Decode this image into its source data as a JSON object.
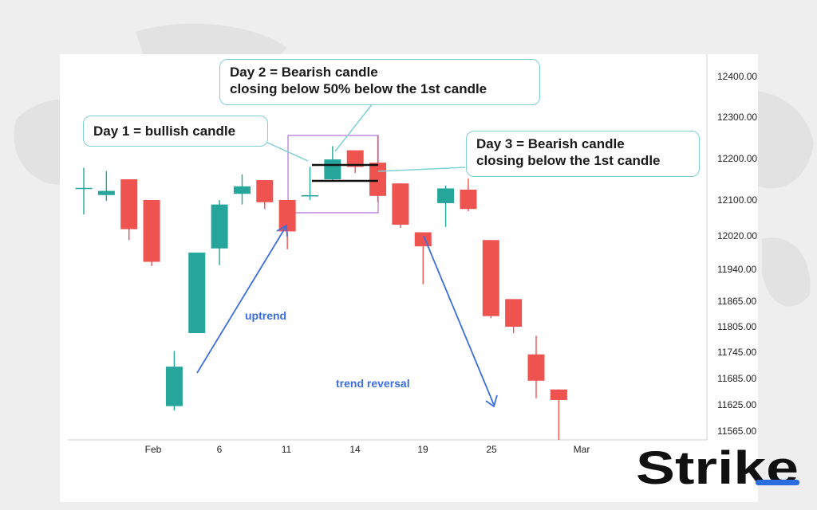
{
  "brand": {
    "logo_text": "Strike",
    "logo_color": "#111111",
    "accent_color": "#2d6cdf"
  },
  "colors": {
    "bullish": "#26a69a",
    "bearish": "#ef5350",
    "annotation_border": "#7fd0d4",
    "highlight_box": "#b56fd6",
    "trend_arrow": "#3b6fe0"
  },
  "callouts": {
    "day1": "Day 1 = bullish candle",
    "day2_line1": "Day 2 = Bearish candle",
    "day2_line2": "closing below 50% below the 1st candle",
    "day3_line1": "Day 3 = Bearish candle",
    "day3_line2": "closing below the 1st candle"
  },
  "annotations": {
    "uptrend": "uptrend",
    "reversal": "trend reversal"
  },
  "chart_data": {
    "type": "candlestick",
    "title": "",
    "xlabel": "",
    "ylabel": "",
    "grid": false,
    "y_tick_labels": [
      "12400.00",
      "12300.00",
      "12200.00",
      "12100.00",
      "12020.00",
      "11940.00",
      "11865.00",
      "11805.00",
      "11745.00",
      "11685.00",
      "11625.00",
      "11565.00"
    ],
    "x_tick_labels": [
      "Feb",
      "6",
      "11",
      "14",
      "19",
      "25",
      "Mar"
    ],
    "candles": [
      {
        "open": 12128,
        "high": 12178,
        "low": 12068,
        "close": 12128
      },
      {
        "open": 12112,
        "high": 12170,
        "low": 12098,
        "close": 12122
      },
      {
        "open": 12150,
        "high": 12150,
        "low": 12010,
        "close": 12035
      },
      {
        "open": 12100,
        "high": 12100,
        "low": 11948,
        "close": 11958
      },
      {
        "open": 11622,
        "high": 11748,
        "low": 11612,
        "close": 11712
      },
      {
        "open": 11790,
        "high": 11980,
        "low": 11790,
        "close": 11980
      },
      {
        "open": 11990,
        "high": 12100,
        "low": 11950,
        "close": 12090
      },
      {
        "open": 12115,
        "high": 12162,
        "low": 12090,
        "close": 12133
      },
      {
        "open": 12148,
        "high": 12148,
        "low": 12080,
        "close": 12095
      },
      {
        "open": 12100,
        "high": 12100,
        "low": 11988,
        "close": 12030
      },
      {
        "open": 12110,
        "high": 12180,
        "low": 12100,
        "close": 12110
      },
      {
        "open": 12150,
        "high": 12230,
        "low": 12145,
        "close": 12198
      },
      {
        "open": 12220,
        "high": 12220,
        "low": 12165,
        "close": 12180
      },
      {
        "open": 12190,
        "high": 12255,
        "low": 12095,
        "close": 12110
      },
      {
        "open": 12140,
        "high": 12140,
        "low": 12038,
        "close": 12045
      },
      {
        "open": 12028,
        "high": 12028,
        "low": 11905,
        "close": 11995
      },
      {
        "open": 12093,
        "high": 12135,
        "low": 12040,
        "close": 12128
      },
      {
        "open": 12125,
        "high": 12152,
        "low": 12075,
        "close": 12080
      },
      {
        "open": 12010,
        "high": 12010,
        "low": 11825,
        "close": 11830
      },
      {
        "open": 11870,
        "high": 11870,
        "low": 11790,
        "close": 11805
      },
      {
        "open": 11740,
        "high": 11784,
        "low": 11640,
        "close": 11680
      },
      {
        "open": 11660,
        "high": 11660,
        "low": 11545,
        "close": 11636
      }
    ]
  }
}
